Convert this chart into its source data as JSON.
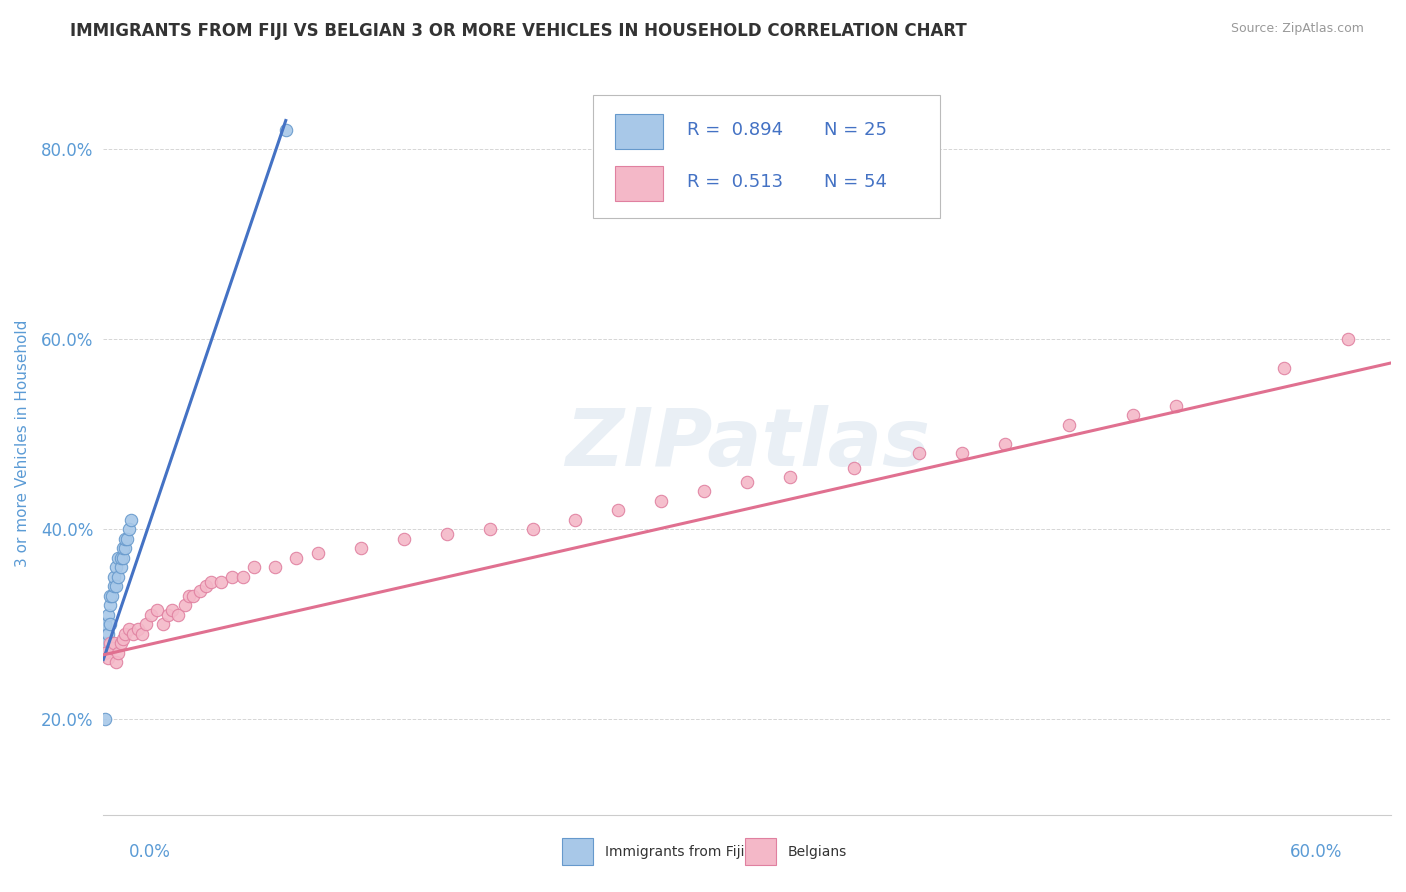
{
  "title": "IMMIGRANTS FROM FIJI VS BELGIAN 3 OR MORE VEHICLES IN HOUSEHOLD CORRELATION CHART",
  "source_text": "Source: ZipAtlas.com",
  "ylabel": "3 or more Vehicles in Household",
  "y_ticks": [
    0.2,
    0.4,
    0.6,
    0.8
  ],
  "y_tick_labels": [
    "20.0%",
    "40.0%",
    "60.0%",
    "80.0%"
  ],
  "x_range": [
    0.0,
    0.6
  ],
  "y_range": [
    0.1,
    0.88
  ],
  "watermark": "ZIPatlas",
  "series1_color": "#a8c8e8",
  "series1_edge": "#6699cc",
  "series2_color": "#f4b8c8",
  "series2_edge": "#e080a0",
  "line1_color": "#4472c4",
  "line2_color": "#e07090",
  "series1_label": "Immigrants from Fiji",
  "series2_label": "Belgians",
  "fiji_x": [
    0.001,
    0.002,
    0.003,
    0.003,
    0.004,
    0.005,
    0.005,
    0.006,
    0.006,
    0.007,
    0.007,
    0.008,
    0.008,
    0.009,
    0.009,
    0.01,
    0.01,
    0.011,
    0.012,
    0.013,
    0.001,
    0.002,
    0.003,
    0.001,
    0.085
  ],
  "fiji_y": [
    0.3,
    0.31,
    0.32,
    0.33,
    0.33,
    0.34,
    0.35,
    0.34,
    0.36,
    0.35,
    0.37,
    0.36,
    0.37,
    0.37,
    0.38,
    0.38,
    0.39,
    0.39,
    0.4,
    0.41,
    0.28,
    0.29,
    0.3,
    0.2,
    0.82
  ],
  "belgian_x": [
    0.001,
    0.002,
    0.003,
    0.004,
    0.005,
    0.006,
    0.007,
    0.008,
    0.009,
    0.01,
    0.012,
    0.014,
    0.016,
    0.018,
    0.02,
    0.022,
    0.025,
    0.028,
    0.03,
    0.032,
    0.035,
    0.038,
    0.04,
    0.042,
    0.045,
    0.048,
    0.05,
    0.055,
    0.06,
    0.065,
    0.07,
    0.08,
    0.09,
    0.1,
    0.12,
    0.14,
    0.16,
    0.18,
    0.2,
    0.22,
    0.24,
    0.26,
    0.28,
    0.3,
    0.32,
    0.35,
    0.38,
    0.4,
    0.42,
    0.45,
    0.48,
    0.5,
    0.55,
    0.58
  ],
  "belgian_y": [
    0.27,
    0.265,
    0.28,
    0.275,
    0.28,
    0.26,
    0.27,
    0.28,
    0.285,
    0.29,
    0.295,
    0.29,
    0.295,
    0.29,
    0.3,
    0.31,
    0.315,
    0.3,
    0.31,
    0.315,
    0.31,
    0.32,
    0.33,
    0.33,
    0.335,
    0.34,
    0.345,
    0.345,
    0.35,
    0.35,
    0.36,
    0.36,
    0.37,
    0.375,
    0.38,
    0.39,
    0.395,
    0.4,
    0.4,
    0.41,
    0.42,
    0.43,
    0.44,
    0.45,
    0.455,
    0.465,
    0.48,
    0.48,
    0.49,
    0.51,
    0.52,
    0.53,
    0.57,
    0.6
  ],
  "background_color": "#ffffff",
  "grid_color": "#cccccc",
  "title_color": "#333333",
  "axis_label_color": "#5b9bd5",
  "tick_label_color": "#5b9bd5",
  "legend_value_color": "#4472c4",
  "legend_text_color": "#333333"
}
